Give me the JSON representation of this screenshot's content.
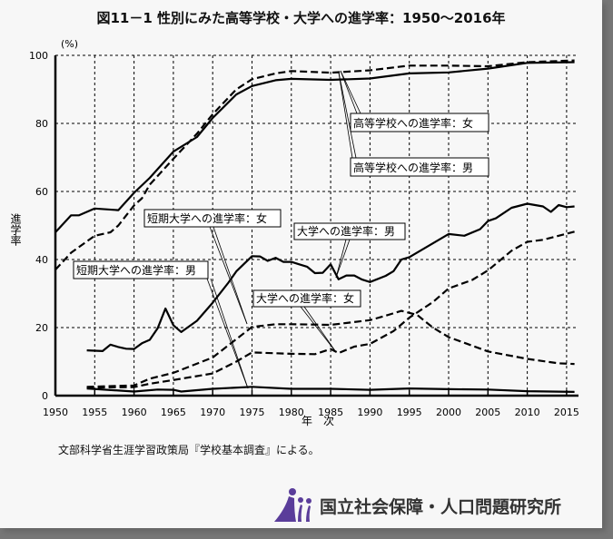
{
  "title": "図11－1 性別にみた高等学校・大学への進学率：1950～2016年",
  "source": "文部科学省生涯学習政策局『学校基本調査』による。",
  "logo": {
    "name": "国立社会保障・人口問題研究所",
    "color": "#5a3d9a"
  },
  "chart_data": {
    "type": "line",
    "title": "図11－1 性別にみた高等学校・大学への進学率：1950～2016年",
    "xlabel": "年　次",
    "ylabel": "進学率",
    "yunit": "(%)",
    "xlim": [
      1950,
      2017
    ],
    "ylim": [
      0,
      100
    ],
    "xticks": [
      1950,
      1955,
      1960,
      1965,
      1970,
      1975,
      1980,
      1985,
      1990,
      1995,
      2000,
      2005,
      2010,
      2015
    ],
    "yticks": [
      0,
      20,
      40,
      60,
      80,
      100
    ],
    "grid": true,
    "series": [
      {
        "name": "高等学校への進学率：女",
        "style": "dashed",
        "points": [
          [
            1950,
            37
          ],
          [
            1952,
            42
          ],
          [
            1955,
            47
          ],
          [
            1957,
            48
          ],
          [
            1958,
            50
          ],
          [
            1960,
            55.9
          ],
          [
            1961,
            58
          ],
          [
            1962,
            62
          ],
          [
            1965,
            69.6
          ],
          [
            1968,
            77
          ],
          [
            1970,
            82.7
          ],
          [
            1973,
            90
          ],
          [
            1975,
            93
          ],
          [
            1978,
            94.7
          ],
          [
            1980,
            95.4
          ],
          [
            1985,
            94.9
          ],
          [
            1990,
            95.6
          ],
          [
            1995,
            97.0
          ],
          [
            2000,
            97.0
          ],
          [
            2005,
            96.8
          ],
          [
            2010,
            98.0
          ],
          [
            2016,
            98.5
          ]
        ]
      },
      {
        "name": "高等学校への進学率：男",
        "style": "solid",
        "points": [
          [
            1950,
            48
          ],
          [
            1952,
            53
          ],
          [
            1953,
            53
          ],
          [
            1955,
            55
          ],
          [
            1958,
            54.5
          ],
          [
            1960,
            59.6
          ],
          [
            1962,
            64
          ],
          [
            1965,
            71.7
          ],
          [
            1968,
            76
          ],
          [
            1970,
            81.6
          ],
          [
            1973,
            88.5
          ],
          [
            1975,
            91
          ],
          [
            1978,
            92.7
          ],
          [
            1980,
            93.1
          ],
          [
            1985,
            92.8
          ],
          [
            1990,
            93.2
          ],
          [
            1995,
            94.7
          ],
          [
            2000,
            95.0
          ],
          [
            2005,
            96.1
          ],
          [
            2010,
            97.8
          ],
          [
            2016,
            98.0
          ]
        ]
      },
      {
        "name": "大学への進学率：男",
        "style": "solid",
        "points": [
          [
            1954,
            13.3
          ],
          [
            1956,
            13.1
          ],
          [
            1957,
            15
          ],
          [
            1958,
            14.3
          ],
          [
            1959,
            13.8
          ],
          [
            1960,
            13.7
          ],
          [
            1961,
            15.4
          ],
          [
            1962,
            16.4
          ],
          [
            1963,
            19.8
          ],
          [
            1964,
            25.6
          ],
          [
            1965,
            20.7
          ],
          [
            1966,
            18.7
          ],
          [
            1968,
            22
          ],
          [
            1970,
            27.3
          ],
          [
            1972,
            33.2
          ],
          [
            1973,
            36.5
          ],
          [
            1975,
            41.0
          ],
          [
            1976,
            40.9
          ],
          [
            1977,
            39.6
          ],
          [
            1978,
            40.5
          ],
          [
            1979,
            39.3
          ],
          [
            1980,
            39.3
          ],
          [
            1981,
            38.6
          ],
          [
            1982,
            37.9
          ],
          [
            1983,
            36
          ],
          [
            1984,
            36.1
          ],
          [
            1985,
            38.6
          ],
          [
            1986,
            34.2
          ],
          [
            1987,
            35.3
          ],
          [
            1988,
            35.3
          ],
          [
            1989,
            34.1
          ],
          [
            1990,
            33.4
          ],
          [
            1992,
            35.2
          ],
          [
            1993,
            36.6
          ],
          [
            1994,
            40
          ],
          [
            1995,
            40.7
          ],
          [
            2000,
            47.5
          ],
          [
            2002,
            47.0
          ],
          [
            2004,
            48.9
          ],
          [
            2005,
            51.3
          ],
          [
            2006,
            52.1
          ],
          [
            2008,
            55.2
          ],
          [
            2010,
            56.4
          ],
          [
            2012,
            55.6
          ],
          [
            2013,
            54.0
          ],
          [
            2014,
            56.0
          ],
          [
            2015,
            55.4
          ],
          [
            2016,
            55.6
          ]
        ]
      },
      {
        "name": "大学への進学率：女",
        "style": "dashed",
        "points": [
          [
            1954,
            2.4
          ],
          [
            1960,
            2.5
          ],
          [
            1962,
            3.5
          ],
          [
            1965,
            4.6
          ],
          [
            1970,
            6.5
          ],
          [
            1973,
            10
          ],
          [
            1975,
            12.7
          ],
          [
            1980,
            12.3
          ],
          [
            1983,
            12.2
          ],
          [
            1985,
            13.7
          ],
          [
            1986,
            12.5
          ],
          [
            1988,
            14.4
          ],
          [
            1990,
            15.2
          ],
          [
            1993,
            19
          ],
          [
            1995,
            22.9
          ],
          [
            1998,
            27.5
          ],
          [
            2000,
            31.5
          ],
          [
            2003,
            34
          ],
          [
            2005,
            36.8
          ],
          [
            2008,
            42.6
          ],
          [
            2010,
            45.2
          ],
          [
            2012,
            45.8
          ],
          [
            2014,
            47
          ],
          [
            2016,
            48.2
          ]
        ]
      },
      {
        "name": "短期大学への進学率：女",
        "style": "dashed",
        "points": [
          [
            1954,
            2.6
          ],
          [
            1960,
            3.0
          ],
          [
            1962,
            5
          ],
          [
            1965,
            6.7
          ],
          [
            1970,
            11.2
          ],
          [
            1975,
            20.2
          ],
          [
            1978,
            21.0
          ],
          [
            1980,
            21.0
          ],
          [
            1985,
            20.8
          ],
          [
            1990,
            22.2
          ],
          [
            1992,
            23.5
          ],
          [
            1994,
            24.9
          ],
          [
            1996,
            23.7
          ],
          [
            1998,
            20
          ],
          [
            2000,
            17.2
          ],
          [
            2005,
            13.0
          ],
          [
            2010,
            10.8
          ],
          [
            2014,
            9.5
          ],
          [
            2016,
            9.3
          ]
        ]
      },
      {
        "name": "短期大学への進学率：男",
        "style": "solid",
        "points": [
          [
            1954,
            2.1
          ],
          [
            1960,
            1.2
          ],
          [
            1963,
            1.8
          ],
          [
            1965,
            1.7
          ],
          [
            1966,
            1.2
          ],
          [
            1970,
            2.0
          ],
          [
            1975,
            2.6
          ],
          [
            1980,
            2.0
          ],
          [
            1985,
            2.0
          ],
          [
            1990,
            1.7
          ],
          [
            1995,
            2.1
          ],
          [
            2000,
            1.9
          ],
          [
            2005,
            1.8
          ],
          [
            2010,
            1.3
          ],
          [
            2016,
            1.1
          ]
        ]
      }
    ]
  }
}
